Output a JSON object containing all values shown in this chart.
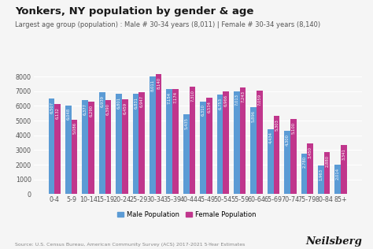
{
  "title": "Yonkers, NY population by gender & age",
  "subtitle": "Largest age group (population) : Male # 30-34 years (8,011) | Female # 30-34 years (8,140)",
  "categories": [
    "0-4",
    "5-9",
    "10-14",
    "15-19",
    "20-24",
    "25-29",
    "30-34",
    "35-39",
    "40-44",
    "45-49",
    "50-54",
    "55-59",
    "60-64",
    "65-69",
    "70-74",
    "75-79",
    "80-84",
    "85+"
  ],
  "male": [
    6507,
    6048,
    6377,
    6939,
    6801,
    6831,
    8011,
    7154,
    5435,
    6310,
    6753,
    7013,
    5896,
    4434,
    4300,
    2780,
    1963,
    2014
  ],
  "female": [
    6132,
    5086,
    6290,
    6390,
    6459,
    6947,
    8140,
    7174,
    7310,
    6534,
    6966,
    7243,
    7059,
    5303,
    5100,
    3450,
    2880,
    3341
  ],
  "male_color": "#5b9bd5",
  "female_color": "#c0368c",
  "background_color": "#f5f5f5",
  "source_text": "Source: U.S. Census Bureau, American Community Survey (ACS) 2017-2021 5-Year Estimates",
  "brand_text": "Neilsberg",
  "ylim": [
    0,
    8800
  ],
  "yticks": [
    0,
    1000,
    2000,
    3000,
    4000,
    5000,
    6000,
    7000,
    8000
  ],
  "bar_value_fontsize": 3.8,
  "title_fontsize": 9.5,
  "subtitle_fontsize": 6.0,
  "axis_fontsize": 5.8,
  "legend_fontsize": 6.0,
  "source_fontsize": 4.5,
  "brand_fontsize": 9.5
}
